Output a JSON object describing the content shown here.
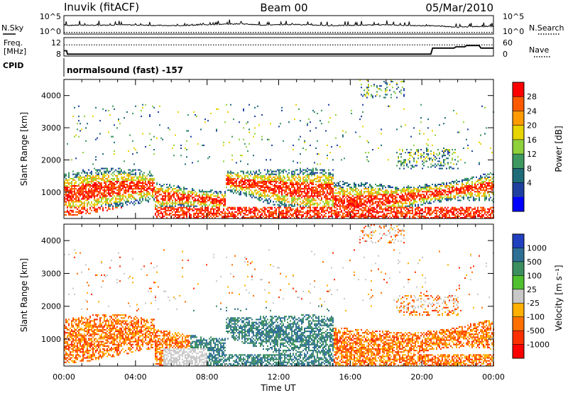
{
  "header": {
    "station": "Inuvik (fitACF)",
    "beam": "Beam 00",
    "date": "05/Mar/2010"
  },
  "left_labels": {
    "nsky": "N.Sky",
    "freq_line1": "Freq.",
    "freq_line2": "[MHz]",
    "cpid": "CPID"
  },
  "right_labels": {
    "nsearch": "N.Search",
    "nave": "Nave"
  },
  "cpid_text": "normalsound (fast) -157",
  "chart_data": [
    {
      "type": "line",
      "panel": "noise",
      "left_axis_ticks": [
        "10^5",
        "10^0"
      ],
      "right_axis_ticks": [
        "10^5",
        "10^0"
      ],
      "series": [
        {
          "name": "N.Sky",
          "x": [
            0,
            1,
            2,
            3,
            4,
            5,
            6,
            7,
            8,
            9,
            10,
            11,
            12,
            13,
            14,
            15,
            16,
            17,
            18,
            19,
            20,
            21,
            22,
            23,
            24
          ],
          "values": [
            2.2,
            2.3,
            2.2,
            2.4,
            2.3,
            2.2,
            2.1,
            2.2,
            2.4,
            2.6,
            2.7,
            2.3,
            2.4,
            2.5,
            2.3,
            2.1,
            2.2,
            2.3,
            2.4,
            2.2,
            2.1,
            2.0,
            1.6,
            1.8,
            1.9
          ]
        },
        {
          "name": "N.Search",
          "x": [
            0,
            24
          ],
          "values": [
            0.1,
            0.1
          ]
        }
      ]
    },
    {
      "type": "line",
      "panel": "frequency",
      "left_axis_ticks": [
        "12",
        "8"
      ],
      "right_axis_ticks": [
        "60",
        "0"
      ],
      "series": [
        {
          "name": "Freq.",
          "x": [
            0,
            0.15,
            20.5,
            21.8,
            22.4,
            22.5,
            23.2,
            24
          ],
          "values": [
            10.5,
            10.5,
            10.5,
            10.5,
            10.5,
            10.5,
            10.5,
            10.5
          ]
        },
        {
          "name": "Nave",
          "x": [
            0,
            0.15,
            0.2,
            20.5,
            20.6,
            21.8,
            21.9,
            22.4,
            22.5,
            23.2,
            23.3,
            24
          ],
          "values": [
            15,
            15,
            2,
            2,
            25,
            25,
            30,
            30,
            35,
            35,
            25,
            25
          ]
        }
      ]
    },
    {
      "type": "heatmap",
      "panel": "power",
      "xlabel": "",
      "ylabel": "Slant Range [km]",
      "x_ticks": [],
      "y_ticks": [
        "1000",
        "2000",
        "3000",
        "4000"
      ],
      "xlim": [
        0,
        24
      ],
      "ylim": [
        180,
        4500
      ],
      "colorbar": {
        "label": "Power [dB]",
        "ticks": [
          "28",
          "24",
          "20",
          "16",
          "12",
          "8",
          "4"
        ],
        "colors": [
          "#ff0000",
          "#ff5a00",
          "#ff9a00",
          "#e7d400",
          "#8fd13a",
          "#3d9960",
          "#1d6b78",
          "#1e3fa0",
          "#0000ff"
        ]
      }
    },
    {
      "type": "heatmap",
      "panel": "velocity",
      "xlabel": "Time UT",
      "ylabel": "Slant Range [km]",
      "x_ticks": [
        "00:00",
        "04:00",
        "08:00",
        "12:00",
        "16:00",
        "20:00",
        "00:00"
      ],
      "y_ticks": [
        "1000",
        "2000",
        "3000",
        "4000"
      ],
      "xlim": [
        0,
        24
      ],
      "ylim": [
        180,
        4500
      ],
      "colorbar": {
        "label": "Velocity [m s⁻¹]",
        "ticks": [
          "1000",
          "500",
          "100",
          "25",
          "-25",
          "-100",
          "-500",
          "-1000"
        ],
        "colors": [
          "#2040c0",
          "#2e6f96",
          "#3b8e60",
          "#4fc030",
          "#c8c8c8",
          "#ffb000",
          "#ff7000",
          "#ff3000",
          "#ff0000"
        ]
      }
    }
  ],
  "colors": {
    "axis": "#000000",
    "background": "#ffffff"
  }
}
